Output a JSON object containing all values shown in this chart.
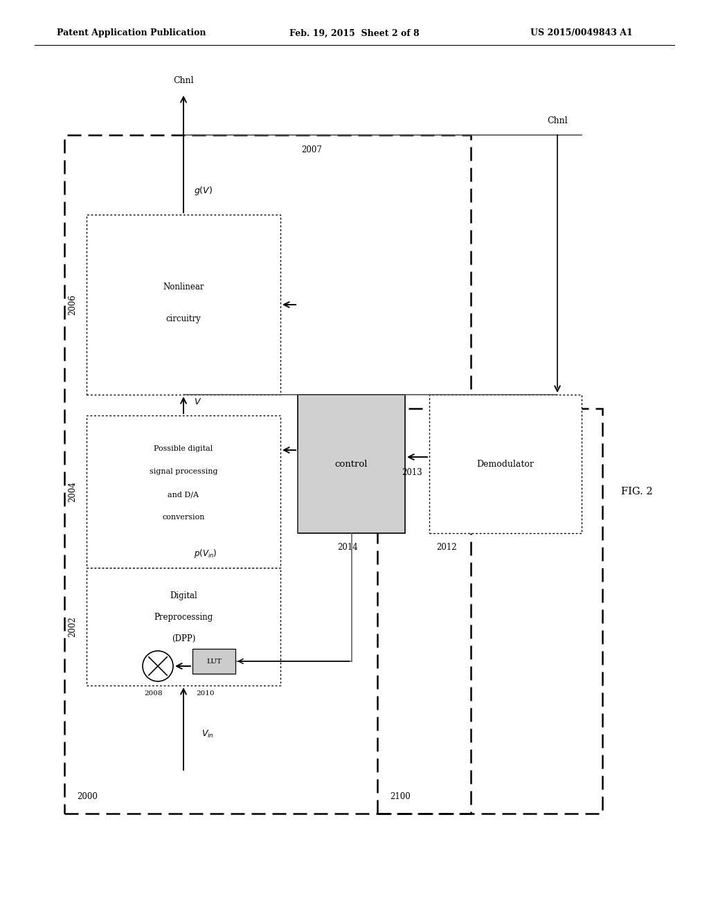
{
  "bg_color": "#ffffff",
  "header_left": "Patent Application Publication",
  "header_center": "Feb. 19, 2015  Sheet 2 of 8",
  "header_right": "US 2015/0049843 A1",
  "fig_label": "FIG. 2"
}
